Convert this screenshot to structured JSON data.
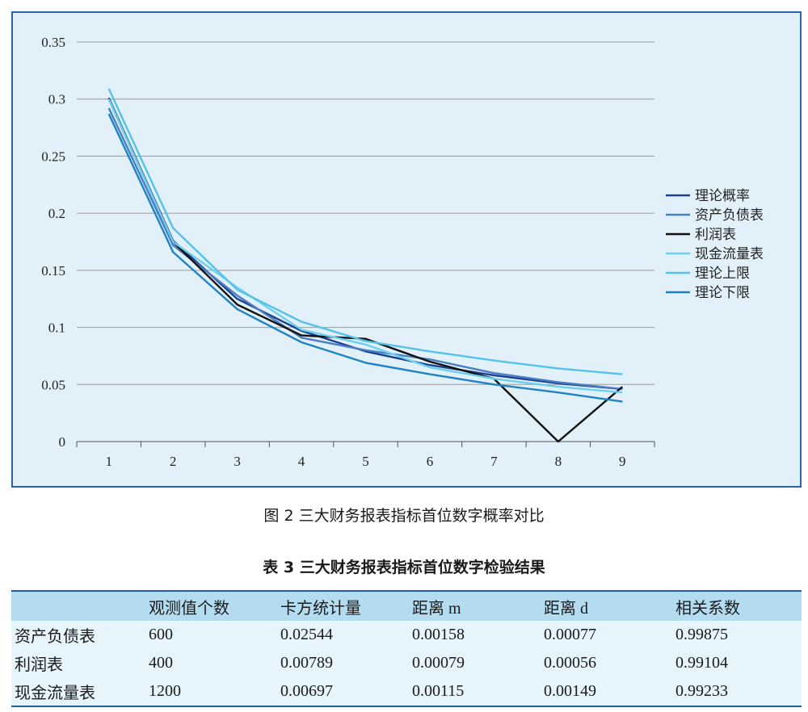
{
  "chart_data": {
    "type": "line",
    "categories": [
      "1",
      "2",
      "3",
      "4",
      "5",
      "6",
      "7",
      "8",
      "9"
    ],
    "ylim": [
      0,
      0.35
    ],
    "yticks": [
      "0",
      "0.05",
      "0.1",
      "0.15",
      "0.2",
      "0.25",
      "0.3",
      "0.35"
    ],
    "grid": true,
    "legend_position": "right",
    "series": [
      {
        "name": "理论概率",
        "color": "#1c3f8f",
        "values": [
          0.301,
          0.176,
          0.125,
          0.097,
          0.079,
          0.067,
          0.058,
          0.051,
          0.046
        ]
      },
      {
        "name": "资产负债表",
        "color": "#4a7ec4",
        "values": [
          0.292,
          0.172,
          0.128,
          0.091,
          0.08,
          0.072,
          0.06,
          0.052,
          0.046
        ]
      },
      {
        "name": "利润表",
        "color": "#111111",
        "values": [
          0.3,
          0.175,
          0.12,
          0.093,
          0.09,
          0.07,
          0.055,
          0.0,
          0.048
        ]
      },
      {
        "name": "现金流量表",
        "color": "#6ccfee",
        "values": [
          0.3,
          0.175,
          0.135,
          0.098,
          0.085,
          0.065,
          0.055,
          0.048,
          0.043
        ]
      },
      {
        "name": "理论上限",
        "color": "#54c2e8",
        "values": [
          0.309,
          0.187,
          0.133,
          0.105,
          0.088,
          0.079,
          0.071,
          0.064,
          0.059
        ]
      },
      {
        "name": "理论下限",
        "color": "#1f82c3",
        "values": [
          0.287,
          0.166,
          0.116,
          0.087,
          0.069,
          0.059,
          0.05,
          0.043,
          0.035
        ]
      }
    ]
  },
  "figure_caption": "图 2  三大财务报表指标首位数字概率对比",
  "table_caption": "表 3  三大财务报表指标首位数字检验结果",
  "table": {
    "headers": [
      "",
      "观测值个数",
      "卡方统计量",
      "距离 m",
      "距离 d",
      "相关系数"
    ],
    "rows": [
      [
        "资产负债表",
        "600",
        "0.02544",
        "0.00158",
        "0.00077",
        "0.99875"
      ],
      [
        "利润表",
        "400",
        "0.00789",
        "0.00079",
        "0.00056",
        "0.99104"
      ],
      [
        "现金流量表",
        "1200",
        "0.00697",
        "0.00115",
        "0.00149",
        "0.99233"
      ]
    ]
  },
  "colors": {
    "panel_fill": "#e1f0f9",
    "panel_border": "#2a63ac",
    "grid": "#9a9a9a",
    "header_fill": "#b4dcf1",
    "row_fill": "#e6f4fb"
  }
}
